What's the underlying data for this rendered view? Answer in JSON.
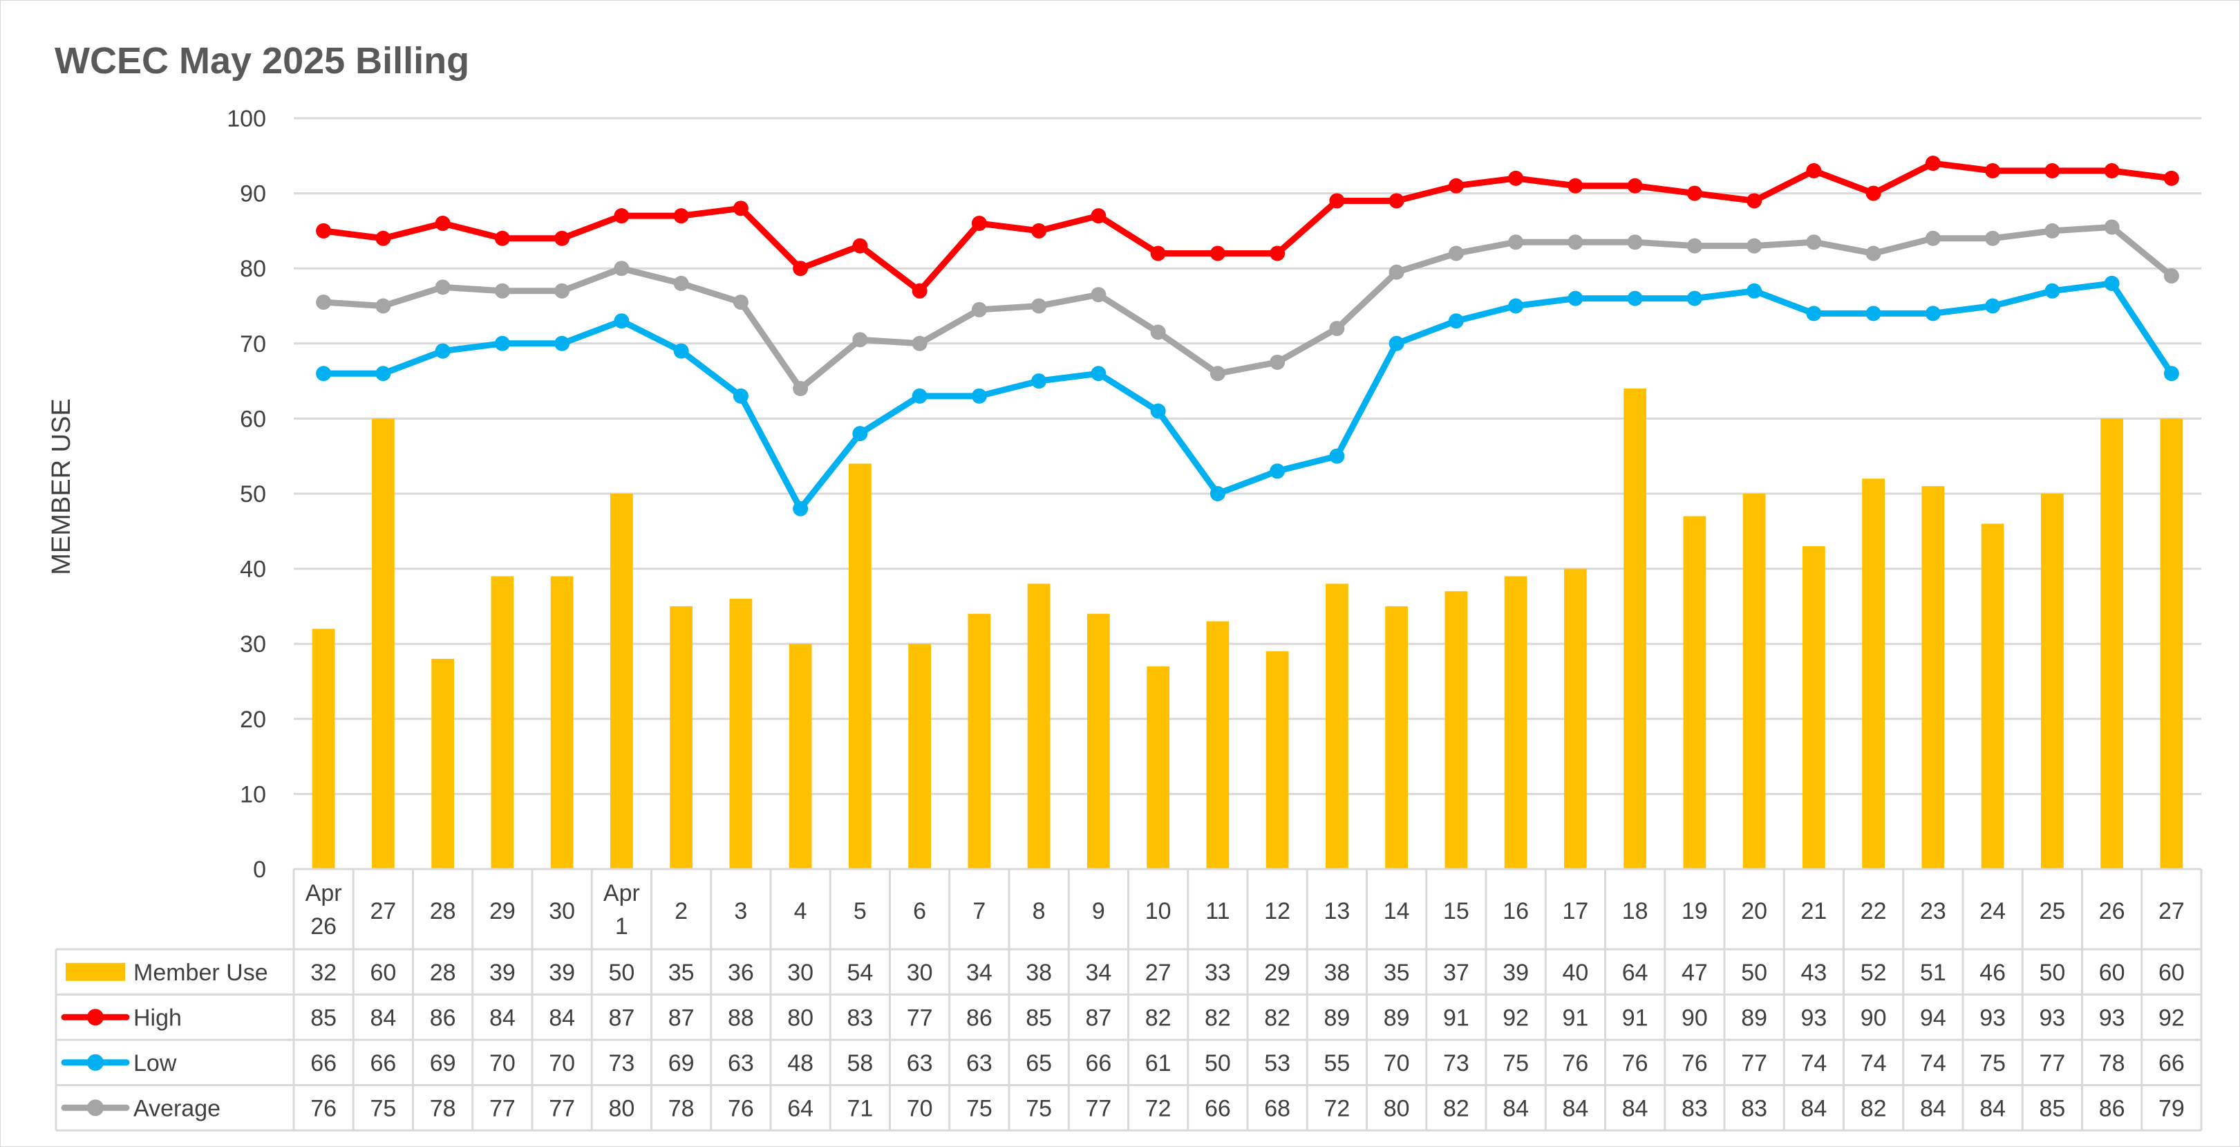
{
  "chart_data": {
    "type": "bar",
    "title": "WCEC May 2025 Billing",
    "xlabel": "",
    "ylabel": "MEMBER USE",
    "ylim": [
      0,
      100
    ],
    "yticks": [
      0,
      10,
      20,
      30,
      40,
      50,
      60,
      70,
      80,
      90,
      100
    ],
    "grid": true,
    "legend": "data-table",
    "categories": [
      [
        "Apr",
        "26"
      ],
      [
        "27"
      ],
      [
        "28"
      ],
      [
        "29"
      ],
      [
        "30"
      ],
      [
        "Apr",
        "1"
      ],
      [
        "2"
      ],
      [
        "3"
      ],
      [
        "4"
      ],
      [
        "5"
      ],
      [
        "6"
      ],
      [
        "7"
      ],
      [
        "8"
      ],
      [
        "9"
      ],
      [
        "10"
      ],
      [
        "11"
      ],
      [
        "12"
      ],
      [
        "13"
      ],
      [
        "14"
      ],
      [
        "15"
      ],
      [
        "16"
      ],
      [
        "17"
      ],
      [
        "18"
      ],
      [
        "19"
      ],
      [
        "20"
      ],
      [
        "21"
      ],
      [
        "22"
      ],
      [
        "23"
      ],
      [
        "24"
      ],
      [
        "25"
      ],
      [
        "26"
      ],
      [
        "27"
      ]
    ],
    "series": [
      {
        "name": "Member Use",
        "kind": "bar",
        "color": "#FFC000",
        "values": [
          32,
          60,
          28,
          39,
          39,
          50,
          35,
          36,
          30,
          54,
          30,
          34,
          38,
          34,
          27,
          33,
          29,
          38,
          35,
          37,
          39,
          40,
          64,
          47,
          50,
          43,
          52,
          51,
          46,
          50,
          60,
          60
        ],
        "labels": [
          "32",
          "60",
          "28",
          "39",
          "39",
          "50",
          "35",
          "36",
          "30",
          "54",
          "30",
          "34",
          "38",
          "34",
          "27",
          "33",
          "29",
          "38",
          "35",
          "37",
          "39",
          "40",
          "64",
          "47",
          "50",
          "43",
          "52",
          "51",
          "46",
          "50",
          "60",
          "60"
        ]
      },
      {
        "name": "High",
        "kind": "line",
        "color": "#FF0000",
        "values": [
          85,
          84,
          86,
          84,
          84,
          87,
          87,
          88,
          80,
          83,
          77,
          86,
          85,
          87,
          82,
          82,
          82,
          89,
          89,
          91,
          92,
          91,
          91,
          90,
          89,
          93,
          90,
          94,
          93,
          93,
          93,
          92
        ],
        "labels": [
          "85",
          "84",
          "86",
          "84",
          "84",
          "87",
          "87",
          "88",
          "80",
          "83",
          "77",
          "86",
          "85",
          "87",
          "82",
          "82",
          "82",
          "89",
          "89",
          "91",
          "92",
          "91",
          "91",
          "90",
          "89",
          "93",
          "90",
          "94",
          "93",
          "93",
          "93",
          "92"
        ]
      },
      {
        "name": "Low",
        "kind": "line",
        "color": "#00B0F0",
        "values": [
          66,
          66,
          69,
          70,
          70,
          73,
          69,
          63,
          48,
          58,
          63,
          63,
          65,
          66,
          61,
          50,
          53,
          55,
          70,
          73,
          75,
          76,
          76,
          76,
          77,
          74,
          74,
          74,
          75,
          77,
          78,
          66
        ],
        "labels": [
          "66",
          "66",
          "69",
          "70",
          "70",
          "73",
          "69",
          "63",
          "48",
          "58",
          "63",
          "63",
          "65",
          "66",
          "61",
          "50",
          "53",
          "55",
          "70",
          "73",
          "75",
          "76",
          "76",
          "76",
          "77",
          "74",
          "74",
          "74",
          "75",
          "77",
          "78",
          "66"
        ]
      },
      {
        "name": "Average",
        "kind": "line",
        "color": "#A5A5A5",
        "values": [
          75.5,
          75,
          77.5,
          77,
          77,
          80,
          78,
          75.5,
          64,
          70.5,
          70,
          74.5,
          75,
          76.5,
          71.5,
          66,
          67.5,
          72,
          79.5,
          82,
          83.5,
          83.5,
          83.5,
          83,
          83,
          83.5,
          82,
          84,
          84,
          85,
          85.5,
          79
        ],
        "labels": [
          "76",
          "75",
          "78",
          "77",
          "77",
          "80",
          "78",
          "76",
          "64",
          "71",
          "70",
          "75",
          "75",
          "77",
          "72",
          "66",
          "68",
          "72",
          "80",
          "82",
          "84",
          "84",
          "84",
          "83",
          "83",
          "84",
          "82",
          "84",
          "84",
          "85",
          "86",
          "79"
        ]
      }
    ]
  }
}
